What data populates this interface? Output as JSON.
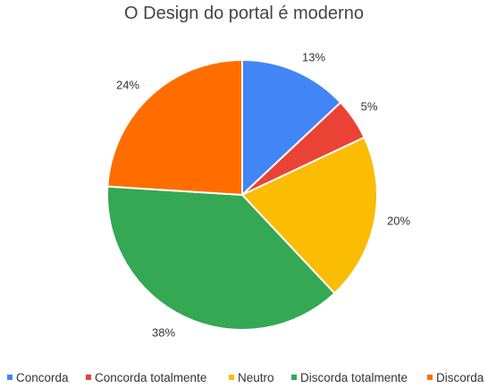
{
  "chart_data": {
    "type": "pie",
    "title": "O Design do portal é moderno",
    "slices": [
      {
        "name": "Concorda",
        "value": 13,
        "label": "13%",
        "color": "#4285F4"
      },
      {
        "name": "Concorda totalmente",
        "value": 5,
        "label": "5%",
        "color": "#EA4335"
      },
      {
        "name": "Neutro",
        "value": 20,
        "label": "20%",
        "color": "#FBBC04"
      },
      {
        "name": "Discorda totalmente",
        "value": 38,
        "label": "38%",
        "color": "#34A853"
      },
      {
        "name": "Discorda",
        "value": 24,
        "label": "24%",
        "color": "#FF6D01"
      }
    ],
    "legend_position": "bottom"
  }
}
